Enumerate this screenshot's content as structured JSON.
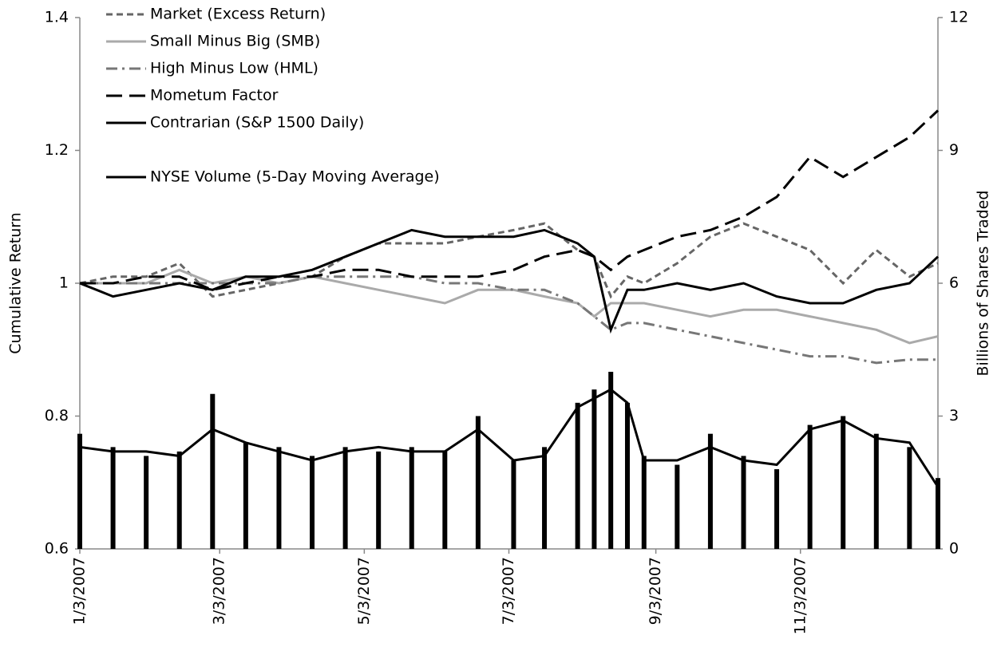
{
  "chart_data": {
    "type": "line",
    "y_label": "Cumulative Return",
    "y2_label": "Billions of Shares Traded",
    "legend": "upper left",
    "x": [
      "2007-01-03",
      "2007-01-17",
      "2007-01-31",
      "2007-02-14",
      "2007-02-28",
      "2007-03-14",
      "2007-03-28",
      "2007-04-11",
      "2007-04-25",
      "2007-05-09",
      "2007-05-23",
      "2007-06-06",
      "2007-06-20",
      "2007-07-05",
      "2007-07-18",
      "2007-08-01",
      "2007-08-08",
      "2007-08-15",
      "2007-08-22",
      "2007-08-29",
      "2007-09-12",
      "2007-09-26",
      "2007-10-10",
      "2007-10-24",
      "2007-11-07",
      "2007-11-21",
      "2007-12-05",
      "2007-12-19",
      "2007-12-31"
    ],
    "xlim": [
      "2007-01-03",
      "2007-12-31"
    ],
    "xticks": [
      {
        "value": "2007-01-03",
        "label": "1/3/2007"
      },
      {
        "value": "2007-03-03",
        "label": "3/3/2007"
      },
      {
        "value": "2007-05-03",
        "label": "5/3/2007"
      },
      {
        "value": "2007-07-03",
        "label": "7/3/2007"
      },
      {
        "value": "2007-09-03",
        "label": "9/3/2007"
      },
      {
        "value": "2007-11-03",
        "label": "11/3/2007"
      }
    ],
    "ylim": [
      0.6,
      1.4
    ],
    "yticks": [
      0.6,
      0.8,
      1,
      1.2,
      1.4
    ],
    "y2lim": [
      0,
      12
    ],
    "y2ticks": [
      0,
      3,
      6,
      9,
      12
    ],
    "series": [
      {
        "name": "Market (Excess Return)",
        "color": "#666666",
        "dash": "dash",
        "values": [
          1.0,
          1.01,
          1.01,
          1.03,
          0.98,
          0.99,
          1.0,
          1.01,
          1.04,
          1.06,
          1.06,
          1.06,
          1.07,
          1.08,
          1.09,
          1.05,
          1.04,
          0.98,
          1.01,
          1.0,
          1.03,
          1.07,
          1.09,
          1.07,
          1.05,
          1.0,
          1.05,
          1.01,
          1.03
        ]
      },
      {
        "name": "Small Minus Big (SMB)",
        "color": "#aaaaaa",
        "dash": "solid",
        "values": [
          1.0,
          1.0,
          1.0,
          1.02,
          1.0,
          1.01,
          1.0,
          1.01,
          1.0,
          0.99,
          0.98,
          0.97,
          0.99,
          0.99,
          0.98,
          0.97,
          0.95,
          0.97,
          0.97,
          0.97,
          0.96,
          0.95,
          0.96,
          0.96,
          0.95,
          0.94,
          0.93,
          0.91,
          0.92
        ]
      },
      {
        "name": "High Minus Low (HML)",
        "color": "#777777",
        "dash": "dashdot",
        "values": [
          1.0,
          1.0,
          1.0,
          1.0,
          1.0,
          1.0,
          1.0,
          1.01,
          1.01,
          1.01,
          1.01,
          1.0,
          1.0,
          0.99,
          0.99,
          0.97,
          0.95,
          0.93,
          0.94,
          0.94,
          0.93,
          0.92,
          0.91,
          0.9,
          0.89,
          0.89,
          0.88,
          0.885,
          0.885
        ]
      },
      {
        "name": "Mometum Factor",
        "color": "#000000",
        "dash": "longdash",
        "values": [
          1.0,
          1.0,
          1.01,
          1.01,
          0.99,
          1.0,
          1.01,
          1.01,
          1.02,
          1.02,
          1.01,
          1.01,
          1.01,
          1.02,
          1.04,
          1.05,
          1.04,
          1.02,
          1.04,
          1.05,
          1.07,
          1.08,
          1.1,
          1.13,
          1.19,
          1.16,
          1.19,
          1.22,
          1.26
        ]
      },
      {
        "name": "Contrarian (S&P 1500 Daily)",
        "color": "#000000",
        "dash": "solid",
        "values": [
          1.0,
          0.98,
          0.99,
          1.0,
          0.99,
          1.01,
          1.01,
          1.02,
          1.04,
          1.06,
          1.08,
          1.07,
          1.07,
          1.07,
          1.08,
          1.06,
          1.04,
          0.93,
          0.99,
          0.99,
          1.0,
          0.99,
          1.0,
          0.98,
          0.97,
          0.97,
          0.99,
          1.0,
          1.04
        ]
      },
      {
        "name": "NYSE Volume (5-Day Moving Average)",
        "color": "#000000",
        "dash": "solid",
        "axis": "y2",
        "values": [
          2.3,
          2.2,
          2.2,
          2.1,
          2.7,
          2.4,
          2.2,
          2.0,
          2.2,
          2.3,
          2.2,
          2.2,
          2.7,
          2.0,
          2.1,
          3.2,
          3.4,
          3.6,
          3.3,
          2.0,
          2.0,
          2.3,
          2.0,
          1.9,
          2.7,
          2.9,
          2.5,
          2.4,
          1.4
        ]
      }
    ],
    "bars": {
      "color": "#000000",
      "axis": "y2",
      "values": [
        2.6,
        2.3,
        2.1,
        2.2,
        3.5,
        2.4,
        2.3,
        2.1,
        2.3,
        2.2,
        2.3,
        2.2,
        3.0,
        2.0,
        2.3,
        3.3,
        3.6,
        4.0,
        3.3,
        2.1,
        1.9,
        2.6,
        2.1,
        1.8,
        2.8,
        3.0,
        2.6,
        2.3,
        1.6
      ]
    }
  }
}
